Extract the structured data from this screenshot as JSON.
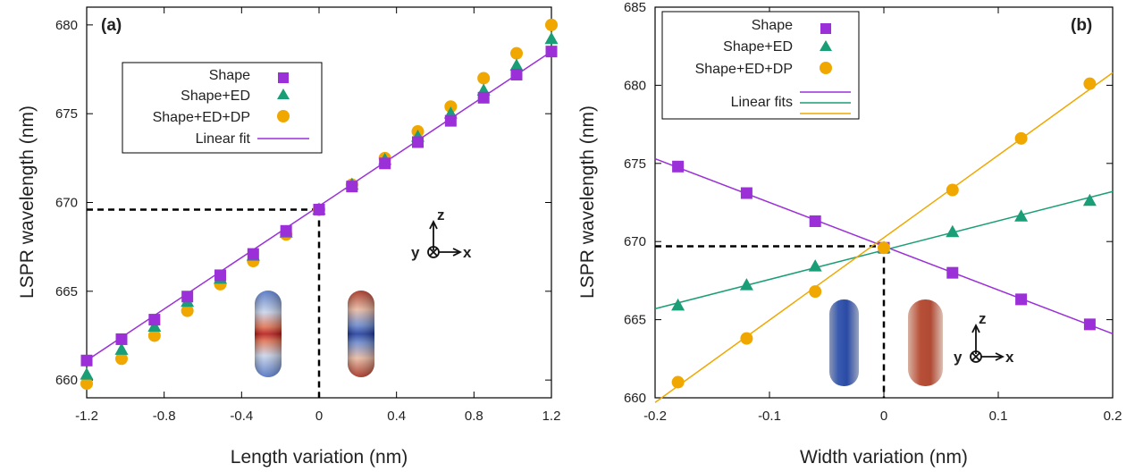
{
  "chart_data": [
    {
      "type": "scatter",
      "panel_label": "(a)",
      "xlabel": "Length variation (nm)",
      "ylabel": "LSPR  wavelength (nm)",
      "xlim": [
        -1.2,
        1.2
      ],
      "ylim": [
        659,
        681
      ],
      "xticks": [
        -1.2,
        -0.8,
        -0.4,
        0,
        0.4,
        0.8,
        1.2
      ],
      "xtick_labels": [
        "-1.2",
        "-0.8",
        "-0.4",
        "0",
        "0.4",
        "0.8",
        "1.2"
      ],
      "yticks": [
        660,
        665,
        670,
        675,
        680
      ],
      "ytick_labels": [
        "660",
        "665",
        "670",
        "675",
        "680"
      ],
      "legend_position": "top-left",
      "series": [
        {
          "name": "Shape",
          "marker": "square",
          "color": "#9b30d9",
          "x": [
            -1.2,
            -1.02,
            -0.85,
            -0.68,
            -0.51,
            -0.34,
            -0.17,
            0,
            0.17,
            0.34,
            0.51,
            0.68,
            0.85,
            1.02,
            1.2
          ],
          "y": [
            661.1,
            662.3,
            663.4,
            664.7,
            665.9,
            667.1,
            668.4,
            669.6,
            670.9,
            672.2,
            673.4,
            674.6,
            675.9,
            677.2,
            678.5
          ]
        },
        {
          "name": "Shape+ED",
          "marker": "triangle",
          "color": "#1a9e77",
          "x": [
            -1.2,
            -1.02,
            -0.85,
            -0.68,
            -0.51,
            -0.34,
            -0.17,
            0,
            0.17,
            0.34,
            0.51,
            0.68,
            0.85,
            1.02,
            1.2
          ],
          "y": [
            660.3,
            661.7,
            663.0,
            664.4,
            665.7,
            667.0,
            668.3,
            669.6,
            671.0,
            672.4,
            673.7,
            675.0,
            676.3,
            677.7,
            679.2
          ]
        },
        {
          "name": "Shape+ED+DP",
          "marker": "circle",
          "color": "#f0a800",
          "x": [
            -1.2,
            -1.02,
            -0.85,
            -0.68,
            -0.51,
            -0.34,
            -0.17,
            0,
            0.17,
            0.34,
            0.51,
            0.68,
            0.85,
            1.02,
            1.2
          ],
          "y": [
            659.8,
            661.2,
            662.5,
            663.9,
            665.4,
            666.7,
            668.2,
            669.6,
            671.0,
            672.5,
            674.0,
            675.4,
            677.0,
            678.4,
            680.0
          ]
        }
      ],
      "fits": [
        {
          "name": "Linear fit",
          "color": "#9b30d9",
          "x": [
            -1.2,
            1.2
          ],
          "y": [
            661.1,
            678.5
          ]
        }
      ],
      "reference": {
        "x": 0,
        "y": 669.6
      },
      "axes_labels": {
        "z": "z",
        "y": "y",
        "x": "x"
      }
    },
    {
      "type": "scatter",
      "panel_label": "(b)",
      "xlabel": "Width variation (nm)",
      "ylabel": "LSPR  wavelength (nm)",
      "xlim": [
        -0.2,
        0.2
      ],
      "ylim": [
        660,
        685
      ],
      "xticks": [
        -0.2,
        -0.1,
        0,
        0.1,
        0.2
      ],
      "xtick_labels": [
        "-0.2",
        "-0.1",
        "0",
        "0.1",
        "0.2"
      ],
      "yticks": [
        660,
        665,
        670,
        675,
        680,
        685
      ],
      "ytick_labels": [
        "660",
        "665",
        "670",
        "675",
        "680",
        "685"
      ],
      "legend_position": "top-left",
      "series": [
        {
          "name": "Shape",
          "marker": "square",
          "color": "#9b30d9",
          "x": [
            -0.18,
            -0.12,
            -0.06,
            0,
            0.06,
            0.12,
            0.18
          ],
          "y": [
            674.8,
            673.1,
            671.3,
            669.6,
            668.0,
            666.3,
            664.7
          ]
        },
        {
          "name": "Shape+ED",
          "marker": "triangle",
          "color": "#1a9e77",
          "x": [
            -0.18,
            -0.12,
            -0.06,
            0,
            0.06,
            0.12,
            0.18
          ],
          "y": [
            665.9,
            667.2,
            668.4,
            669.6,
            670.6,
            671.6,
            672.6
          ]
        },
        {
          "name": "Shape+ED+DP",
          "marker": "circle",
          "color": "#f0a800",
          "x": [
            -0.18,
            -0.12,
            -0.06,
            0,
            0.06,
            0.12,
            0.18
          ],
          "y": [
            661.0,
            663.8,
            666.8,
            669.6,
            673.3,
            676.6,
            680.1
          ]
        }
      ],
      "fits": [
        {
          "color": "#9b30d9",
          "x": [
            -0.2,
            0.2
          ],
          "y": [
            675.3,
            664.1
          ]
        },
        {
          "color": "#1a9e77",
          "x": [
            -0.2,
            0.2
          ],
          "y": [
            665.7,
            673.2
          ]
        },
        {
          "color": "#f0a800",
          "x": [
            -0.2,
            0.2
          ],
          "y": [
            659.7,
            680.8
          ]
        }
      ],
      "fits_legend_label": "Linear fits",
      "reference": {
        "x": 0,
        "y": 669.7
      },
      "axes_labels": {
        "z": "z",
        "y": "y",
        "x": "x"
      }
    }
  ]
}
